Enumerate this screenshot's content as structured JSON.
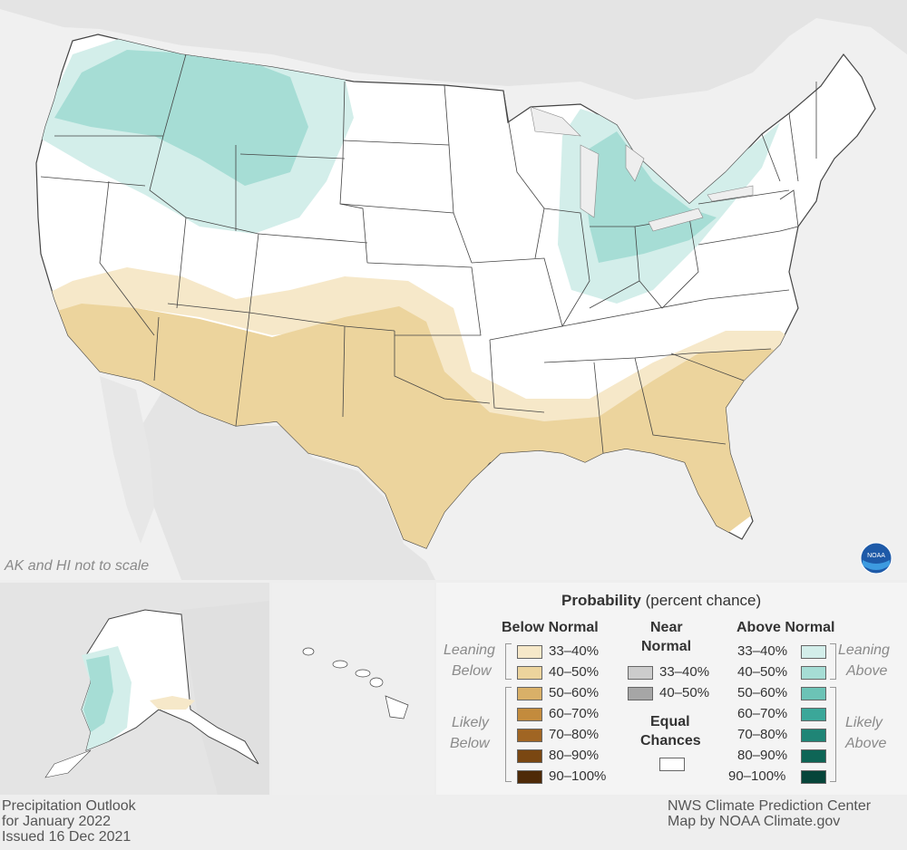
{
  "map_note": "AK and HI not to scale",
  "legend": {
    "title_bold": "Probability",
    "title_rest": " (percent chance)",
    "below_header": "Below Normal",
    "near_header_line1": "Near",
    "near_header_line2": "Normal",
    "above_header": "Above Normal",
    "leaning_below_1": "Leaning",
    "leaning_below_2": "Below",
    "likely_below_1": "Likely",
    "likely_below_2": "Below",
    "leaning_above_1": "Leaning",
    "leaning_above_2": "Above",
    "likely_above_1": "Likely",
    "likely_above_2": "Above",
    "equal_chances_1": "Equal",
    "equal_chances_2": "Chances",
    "below_items": [
      {
        "label": "33–40%",
        "color": "#f6e8c9"
      },
      {
        "label": "40–50%",
        "color": "#ecd49d"
      },
      {
        "label": "50–60%",
        "color": "#d9b068"
      },
      {
        "label": "60–70%",
        "color": "#c38b3d"
      },
      {
        "label": "70–80%",
        "color": "#a06523"
      },
      {
        "label": "80–90%",
        "color": "#7a4712"
      },
      {
        "label": "90–100%",
        "color": "#4e2a08"
      }
    ],
    "near_items": [
      {
        "label": "33–40%",
        "color": "#cccccc"
      },
      {
        "label": "40–50%",
        "color": "#a6a6a6"
      }
    ],
    "above_items": [
      {
        "label": "33–40%",
        "color": "#d3eeea"
      },
      {
        "label": "40–50%",
        "color": "#a6ddd5"
      },
      {
        "label": "50–60%",
        "color": "#6cc3b6"
      },
      {
        "label": "60–70%",
        "color": "#3ba799"
      },
      {
        "label": "70–80%",
        "color": "#1f8576"
      },
      {
        "label": "80–90%",
        "color": "#0e6556"
      },
      {
        "label": "90–100%",
        "color": "#06453a"
      }
    ],
    "equal_color": "#ffffff"
  },
  "footer": {
    "left_line1": "Precipitation Outlook",
    "left_line2": "for January 2022",
    "left_line3": "Issued 16 Dec 2021",
    "right_line1": "NWS Climate Prediction Center",
    "right_line2": "Map by NOAA Climate.gov"
  },
  "logo_text": "NOAA"
}
